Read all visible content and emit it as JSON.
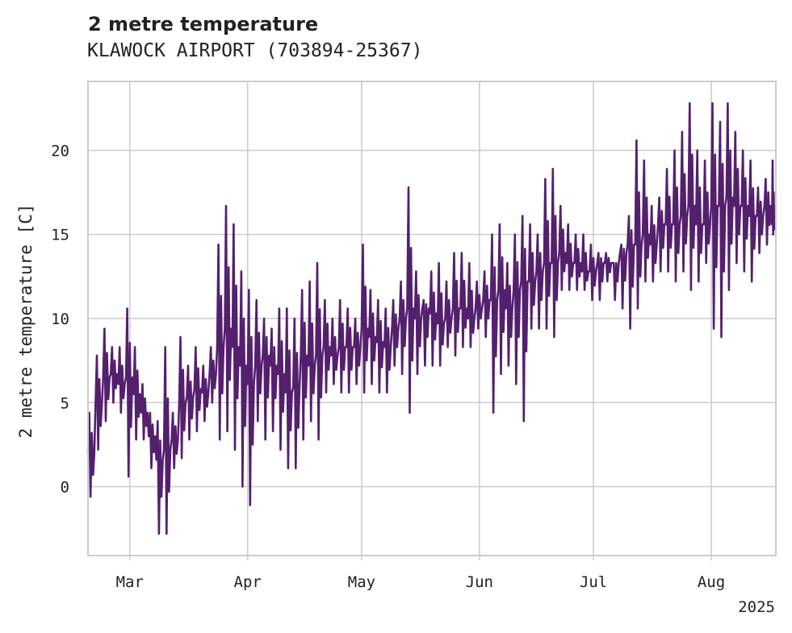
{
  "chart_data": {
    "type": "line",
    "title": "2 metre temperature",
    "subtitle": "KLAWOCK AIRPORT (703894-25367)",
    "ylabel": "2 metre temperature [C]",
    "xlabel": "",
    "year_label": "2025",
    "x_ticks": [
      {
        "label": "Mar",
        "date": "2025-03-01"
      },
      {
        "label": "Apr",
        "date": "2025-04-01"
      },
      {
        "label": "May",
        "date": "2025-05-01"
      },
      {
        "label": "Jun",
        "date": "2025-06-01"
      },
      {
        "label": "Jul",
        "date": "2025-07-01"
      },
      {
        "label": "Aug",
        "date": "2025-08-01"
      }
    ],
    "y_ticks": [
      0,
      5,
      10,
      15,
      20
    ],
    "xlim": [
      "2025-02-18",
      "2025-08-18"
    ],
    "ylim": [
      -4.1,
      24.1
    ],
    "grid": true,
    "legend": "none",
    "color": "#54206e",
    "series": [
      {
        "x": [
          "2025-02-18",
          "2025-02-20",
          "2025-02-22",
          "2025-02-24",
          "2025-02-26",
          "2025-02-28",
          "2025-03-02",
          "2025-03-04",
          "2025-03-06",
          "2025-03-08",
          "2025-03-10",
          "2025-03-12",
          "2025-03-14",
          "2025-03-16",
          "2025-03-18",
          "2025-03-20",
          "2025-03-22",
          "2025-03-24",
          "2025-03-26",
          "2025-03-28",
          "2025-03-30",
          "2025-04-01",
          "2025-04-03",
          "2025-04-05",
          "2025-04-07",
          "2025-04-09",
          "2025-04-11",
          "2025-04-13",
          "2025-04-15",
          "2025-04-17",
          "2025-04-19",
          "2025-04-21",
          "2025-04-23",
          "2025-04-25",
          "2025-04-27",
          "2025-04-29",
          "2025-05-01",
          "2025-05-03",
          "2025-05-05",
          "2025-05-07",
          "2025-05-09",
          "2025-05-11",
          "2025-05-13",
          "2025-05-15",
          "2025-05-17",
          "2025-05-19",
          "2025-05-21",
          "2025-05-23",
          "2025-05-25",
          "2025-05-27",
          "2025-05-29",
          "2025-05-31",
          "2025-06-02",
          "2025-06-04",
          "2025-06-06",
          "2025-06-08",
          "2025-06-10",
          "2025-06-12",
          "2025-06-14",
          "2025-06-16",
          "2025-06-18",
          "2025-06-20",
          "2025-06-22",
          "2025-06-24",
          "2025-06-26",
          "2025-06-28",
          "2025-06-30",
          "2025-07-02",
          "2025-07-04",
          "2025-07-06",
          "2025-07-08",
          "2025-07-10",
          "2025-07-12",
          "2025-07-14",
          "2025-07-16",
          "2025-07-18",
          "2025-07-20",
          "2025-07-22",
          "2025-07-24",
          "2025-07-26",
          "2025-07-28",
          "2025-07-30",
          "2025-08-01",
          "2025-08-03",
          "2025-08-05",
          "2025-08-07",
          "2025-08-09",
          "2025-08-11",
          "2025-08-13",
          "2025-08-15",
          "2025-08-17"
        ],
        "y_high": [
          4.4,
          7.8,
          9.4,
          8.3,
          8.3,
          10.6,
          8.3,
          6.1,
          4.4,
          3.9,
          8.3,
          4.4,
          8.9,
          7.2,
          8.3,
          7.2,
          8.3,
          14.4,
          16.7,
          15.6,
          12.8,
          11.7,
          11.1,
          10.0,
          9.4,
          10.6,
          10.6,
          10.0,
          11.7,
          12.2,
          13.3,
          11.1,
          10.0,
          11.1,
          10.6,
          10.0,
          14.4,
          11.7,
          11.1,
          10.6,
          11.1,
          12.2,
          17.8,
          12.8,
          11.1,
          12.8,
          13.3,
          12.2,
          13.9,
          13.9,
          13.3,
          12.2,
          12.8,
          15.0,
          15.6,
          13.3,
          15.0,
          16.1,
          15.6,
          15.0,
          18.3,
          18.9,
          16.7,
          15.6,
          15.0,
          15.0,
          14.4,
          13.9,
          13.9,
          13.3,
          14.4,
          16.1,
          20.6,
          19.4,
          16.7,
          17.2,
          18.9,
          20.0,
          21.1,
          22.8,
          20.0,
          19.4,
          22.8,
          21.7,
          22.8,
          21.1,
          20.0,
          19.4,
          17.8,
          18.3,
          19.4
        ],
        "y_low": [
          -0.6,
          2.2,
          3.9,
          5.0,
          4.4,
          0.6,
          2.8,
          2.8,
          1.1,
          -2.8,
          -2.8,
          1.1,
          1.7,
          2.8,
          3.3,
          3.9,
          5.0,
          2.8,
          3.3,
          2.2,
          0.0,
          -1.1,
          3.9,
          2.8,
          3.3,
          2.2,
          1.1,
          1.1,
          2.8,
          3.9,
          2.8,
          5.6,
          6.1,
          5.6,
          5.6,
          6.1,
          5.6,
          6.1,
          5.6,
          5.6,
          7.2,
          6.7,
          4.4,
          6.7,
          7.2,
          7.2,
          7.2,
          8.3,
          7.8,
          8.3,
          8.3,
          9.4,
          8.9,
          4.4,
          6.7,
          7.2,
          6.1,
          3.9,
          9.4,
          9.4,
          9.4,
          8.9,
          11.7,
          11.7,
          11.7,
          11.7,
          11.1,
          11.1,
          12.2,
          11.1,
          10.6,
          9.4,
          10.6,
          12.2,
          12.2,
          12.8,
          12.8,
          12.2,
          12.8,
          11.7,
          12.2,
          13.3,
          9.4,
          8.9,
          11.7,
          13.3,
          12.8,
          12.2,
          13.9,
          14.4,
          15.0
        ],
        "y": [
          2.0,
          5.0,
          6.5,
          6.7,
          6.1,
          6.5,
          5.5,
          4.4,
          3.0,
          1.6,
          2.2,
          2.8,
          5.0,
          5.3,
          5.8,
          5.6,
          6.7,
          8.3,
          9.4,
          8.3,
          7.2,
          6.1,
          7.2,
          7.8,
          7.2,
          6.7,
          5.6,
          5.9,
          7.8,
          7.2,
          7.8,
          8.3,
          7.8,
          8.3,
          8.3,
          8.3,
          9.4,
          8.9,
          8.6,
          8.3,
          9.4,
          10.0,
          10.6,
          10.0,
          10.6,
          10.3,
          9.7,
          10.0,
          10.6,
          10.6,
          10.0,
          10.6,
          11.1,
          11.1,
          11.7,
          10.6,
          11.7,
          12.2,
          12.2,
          12.8,
          13.3,
          13.3,
          13.9,
          13.3,
          13.3,
          12.8,
          12.8,
          13.3,
          13.3,
          13.3,
          13.9,
          14.4,
          14.4,
          15.0,
          14.4,
          15.6,
          15.6,
          15.6,
          16.1,
          16.7,
          15.6,
          15.6,
          16.7,
          16.7,
          17.2,
          16.7,
          16.7,
          16.1,
          16.1,
          16.7,
          15.6
        ]
      }
    ]
  }
}
